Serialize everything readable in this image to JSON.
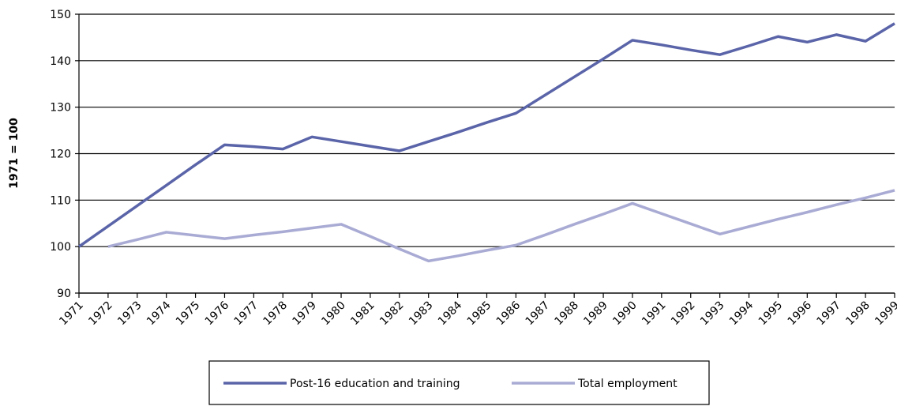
{
  "chart_data": {
    "type": "line",
    "y_label": "1971 = 100",
    "categories": [
      "1971",
      "1972",
      "1973",
      "1974",
      "1975",
      "1976",
      "1977",
      "1978",
      "1979",
      "1980",
      "1981",
      "1982",
      "1983",
      "1984",
      "1985",
      "1986",
      "1987",
      "1988",
      "1989",
      "1990",
      "1991",
      "1992",
      "1993",
      "1994",
      "1995",
      "1996",
      "1997",
      "1998",
      "1999"
    ],
    "series": [
      {
        "name": "Post-16 education and training",
        "color": "#5a64a8",
        "values": [
          100,
          104.4,
          108.8,
          113.2,
          117.6,
          121.9,
          121.5,
          121,
          123.6,
          122.6,
          121.6,
          120.6,
          122.6,
          124.6,
          126.7,
          128.7,
          132.6,
          136.5,
          140.4,
          144.4,
          143.4,
          142.3,
          141.3,
          143.2,
          145.2,
          144,
          145.6,
          144.2,
          148
        ]
      },
      {
        "name": "Total employment",
        "color": "#a9abd4",
        "values": [
          null,
          100,
          101.5,
          103.1,
          102.4,
          101.7,
          102.5,
          103.2,
          104,
          104.8,
          102.2,
          99.5,
          96.9,
          98,
          99.2,
          100.3,
          102.5,
          104.8,
          107,
          109.3,
          107.1,
          104.9,
          102.7,
          104.3,
          105.9,
          107.4,
          109,
          110.5,
          112.1
        ]
      }
    ],
    "ylim": [
      90,
      150
    ],
    "yticks": [
      90,
      100,
      110,
      120,
      130,
      140,
      150
    ],
    "grid": true,
    "legend": "bottom"
  }
}
